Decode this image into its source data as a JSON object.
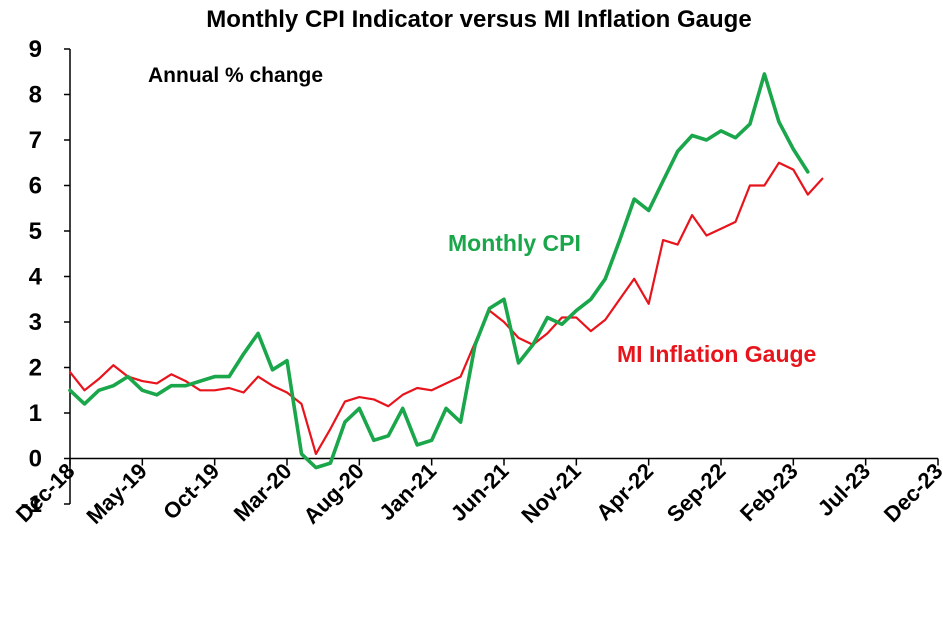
{
  "chart_data": {
    "type": "line",
    "title": "Monthly CPI Indicator versus MI Inflation Gauge",
    "annotation": "Annual % change",
    "ylim": [
      -1,
      9
    ],
    "yticks": [
      -1,
      0,
      1,
      2,
      3,
      4,
      5,
      6,
      7,
      8,
      9
    ],
    "x_start_month_index": 0,
    "x_months_total": 60,
    "xticks": [
      {
        "label": "Dec-18",
        "month": 0
      },
      {
        "label": "May-19",
        "month": 5
      },
      {
        "label": "Oct-19",
        "month": 10
      },
      {
        "label": "Mar-20",
        "month": 15
      },
      {
        "label": "Aug-20",
        "month": 20
      },
      {
        "label": "Jan-21",
        "month": 25
      },
      {
        "label": "Jun-21",
        "month": 30
      },
      {
        "label": "Nov-21",
        "month": 35
      },
      {
        "label": "Apr-22",
        "month": 40
      },
      {
        "label": "Sep-22",
        "month": 45
      },
      {
        "label": "Feb-23",
        "month": 50
      },
      {
        "label": "Jul-23",
        "month": 55
      },
      {
        "label": "Dec-23",
        "month": 60
      }
    ],
    "series": [
      {
        "name": "Monthly CPI",
        "color": "#1aa64a",
        "start_month": 0,
        "values": [
          1.5,
          1.2,
          1.5,
          1.6,
          1.8,
          1.5,
          1.4,
          1.6,
          1.6,
          1.7,
          1.8,
          1.8,
          2.3,
          2.75,
          1.95,
          2.15,
          0.1,
          -0.2,
          -0.1,
          0.8,
          1.1,
          0.4,
          0.5,
          1.1,
          0.3,
          0.4,
          1.1,
          0.8,
          2.5,
          3.3,
          3.5,
          2.1,
          2.5,
          3.1,
          2.95,
          3.25,
          3.5,
          3.95,
          4.8,
          5.7,
          5.45,
          6.1,
          6.75,
          7.1,
          7.0,
          7.2,
          7.05,
          7.35,
          8.45,
          7.4,
          6.8,
          6.3
        ]
      },
      {
        "name": "MI Inflation Gauge",
        "color": "#e8141c",
        "start_month": 0,
        "values": [
          1.9,
          1.5,
          1.75,
          2.05,
          1.8,
          1.7,
          1.65,
          1.85,
          1.7,
          1.5,
          1.5,
          1.55,
          1.45,
          1.8,
          1.6,
          1.45,
          1.2,
          0.1,
          0.65,
          1.25,
          1.35,
          1.3,
          1.15,
          1.4,
          1.55,
          1.5,
          1.65,
          1.8,
          2.55,
          3.25,
          3.0,
          2.65,
          2.5,
          2.75,
          3.1,
          3.1,
          2.8,
          3.05,
          3.5,
          3.95,
          3.4,
          4.8,
          4.7,
          5.35,
          4.9,
          5.05,
          5.2,
          6.0,
          6.0,
          6.5,
          6.35,
          5.8,
          6.15
        ]
      }
    ],
    "series_labels": [
      {
        "text": "Monthly CPI",
        "series": 0
      },
      {
        "text": "MI Inflation Gauge",
        "series": 1
      }
    ]
  }
}
